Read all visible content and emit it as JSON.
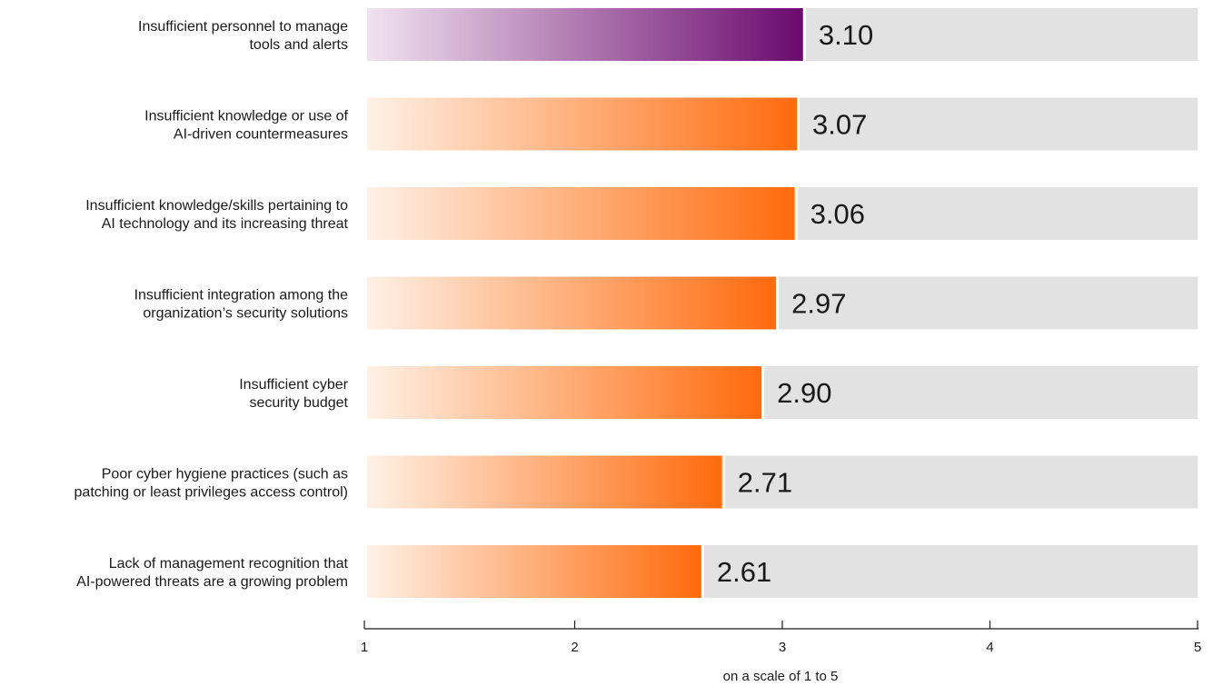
{
  "chart_data": {
    "type": "bar",
    "orientation": "horizontal",
    "categories": [
      [
        "Insufficient personnel to manage",
        "tools and alerts"
      ],
      [
        "Insufficient knowledge or use of",
        "AI-driven countermeasures"
      ],
      [
        "Insufficient knowledge/skills pertaining to",
        "AI technology and its increasing threat"
      ],
      [
        "Insufficient integration among the",
        "organization’s security solutions"
      ],
      [
        "Insufficient cyber",
        "security budget"
      ],
      [
        "Poor cyber hygiene practices (such as",
        "patching or least privileges access control)"
      ],
      [
        "Lack of management recognition that",
        "AI-powered threats are a growing problem"
      ]
    ],
    "values": [
      3.1,
      3.07,
      3.06,
      2.97,
      2.9,
      2.71,
      2.61
    ],
    "value_labels": [
      "3.10",
      "3.07",
      "3.06",
      "2.97",
      "2.90",
      "2.71",
      "2.61"
    ],
    "highlight_index": 0,
    "xlim": [
      1,
      5
    ],
    "ticks": [
      1,
      2,
      3,
      4,
      5
    ],
    "tick_labels": [
      "1",
      "2",
      "3",
      "4",
      "5"
    ],
    "xlabel": "on a scale of 1 to 5",
    "title": "",
    "colors": {
      "highlight_start": "#f1e3f0",
      "highlight_end": "#6b0a6e",
      "bar_start": "#fff1e6",
      "bar_end": "#ff6a0c",
      "track": "#e2e2e2",
      "axis": "#1a1a1a",
      "text": "#1a1a1a"
    }
  }
}
